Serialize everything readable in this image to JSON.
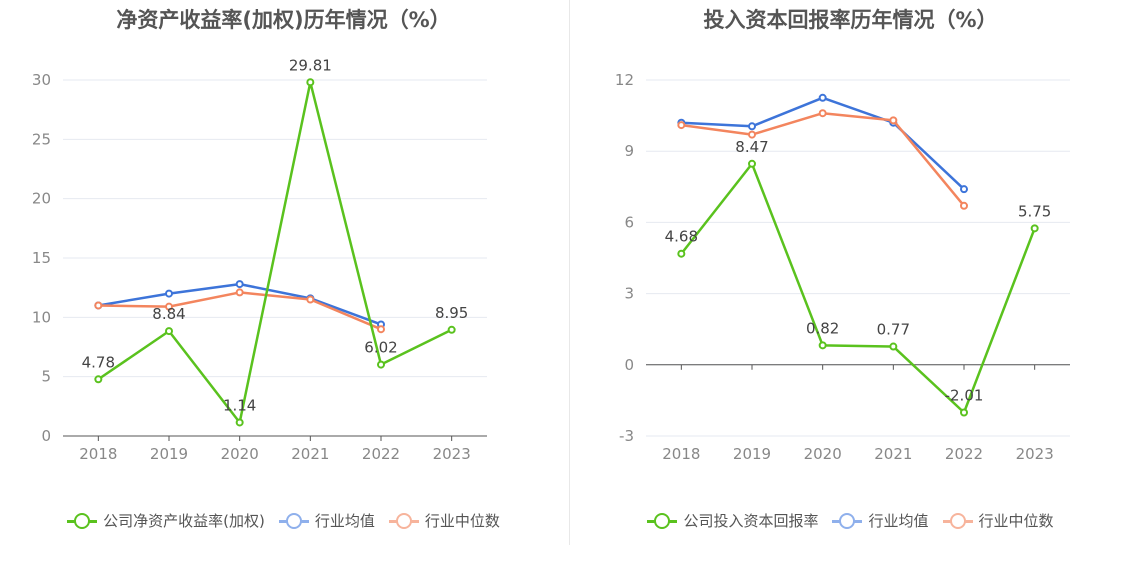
{
  "chart_data": [
    {
      "type": "line",
      "title": "净资产收益率(加权)历年情况（%）",
      "categories": [
        "2018",
        "2019",
        "2020",
        "2021",
        "2022",
        "2023"
      ],
      "ylim": [
        0,
        30
      ],
      "yticks": [
        0,
        5,
        10,
        15,
        20,
        25,
        30
      ],
      "grid": true,
      "legend_position": "bottom",
      "series": [
        {
          "name": "公司净资产收益率(加权)",
          "color": "#5ac21e",
          "values": [
            4.78,
            8.84,
            1.14,
            29.81,
            6.02,
            8.95
          ],
          "labels": [
            "4.78",
            "8.84",
            "1.14",
            "29.81",
            "6.02",
            "8.95"
          ]
        },
        {
          "name": "行业均值",
          "color": "#3d74d9",
          "values": [
            11.0,
            12.0,
            12.8,
            11.6,
            9.4,
            null
          ]
        },
        {
          "name": "行业中位数",
          "color": "#f3855e",
          "values": [
            11.0,
            10.9,
            12.1,
            11.5,
            9.0,
            null
          ]
        }
      ]
    },
    {
      "type": "line",
      "title": "投入资本回报率历年情况（%）",
      "categories": [
        "2018",
        "2019",
        "2020",
        "2021",
        "2022",
        "2023"
      ],
      "ylim": [
        -3,
        12
      ],
      "yticks": [
        -3,
        0,
        3,
        6,
        9,
        12
      ],
      "grid": true,
      "legend_position": "bottom",
      "series": [
        {
          "name": "公司投入资本回报率",
          "color": "#5ac21e",
          "values": [
            4.68,
            8.47,
            0.82,
            0.77,
            -2.01,
            5.75
          ],
          "labels": [
            "4.68",
            "8.47",
            "0.82",
            "0.77",
            "-2.01",
            "5.75"
          ]
        },
        {
          "name": "行业均值",
          "color": "#3d74d9",
          "values": [
            10.2,
            10.05,
            11.25,
            10.2,
            7.4,
            null
          ]
        },
        {
          "name": "行业中位数",
          "color": "#f3855e",
          "values": [
            10.1,
            9.7,
            10.6,
            10.3,
            6.7,
            null
          ]
        }
      ]
    }
  ]
}
